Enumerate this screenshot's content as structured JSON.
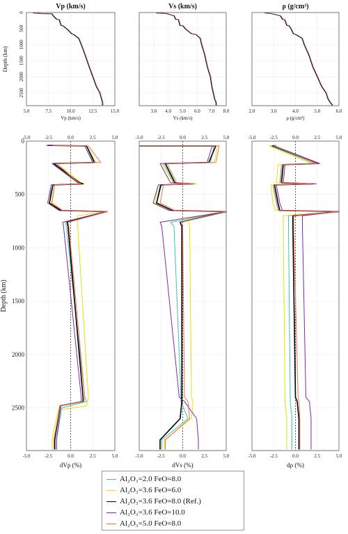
{
  "chart_data": [
    {
      "type": "line",
      "panel": "top-left",
      "title": "Vp (km/s)",
      "xlabel": "Vp (km/s)",
      "ylabel": "Depth (km)",
      "xlim": [
        5.0,
        15.0
      ],
      "ylim": [
        2900,
        0
      ],
      "xticks": [
        "5.0",
        "7.5",
        "10.0",
        "12.5",
        "15.0"
      ],
      "yticks": [
        "0",
        "500",
        "1000",
        "1500",
        "2000",
        "2500"
      ],
      "series": [
        {
          "x": [
            5.8,
            5.8,
            6.8,
            7.9,
            8.0,
            8.4,
            8.7,
            8.9,
            9.1,
            9.6,
            10.1,
            10.3,
            10.9,
            11.2,
            11.6,
            12.1,
            12.5,
            12.9,
            13.3,
            13.5,
            13.6,
            13.6
          ],
          "y": [
            0,
            15,
            35,
            40,
            100,
            210,
            220,
            400,
            410,
            520,
            660,
            680,
            800,
            1000,
            1300,
            1700,
            2000,
            2300,
            2500,
            2700,
            2800,
            2890
          ]
        }
      ],
      "grid": true
    },
    {
      "type": "line",
      "panel": "top-middle",
      "title": "Vs (km/s)",
      "xlabel": "Vs (km/s)",
      "xlim": [
        2.0,
        8.0
      ],
      "ylim": [
        2900,
        0
      ],
      "xticks": [
        "3.0",
        "4.0",
        "5.0",
        "6.0",
        "7.0",
        "8.0"
      ],
      "yticks": [
        "0",
        "500",
        "1000",
        "1500",
        "2000",
        "2500"
      ],
      "series": [
        {
          "x": [
            3.2,
            3.2,
            3.9,
            4.4,
            4.5,
            4.7,
            4.8,
            5.0,
            5.2,
            5.6,
            5.9,
            6.2,
            6.3,
            6.5,
            6.7,
            6.9,
            7.0,
            7.1,
            7.2,
            7.3,
            7.3
          ],
          "y": [
            0,
            15,
            35,
            100,
            210,
            220,
            400,
            410,
            520,
            660,
            680,
            800,
            1000,
            1300,
            1700,
            2000,
            2300,
            2500,
            2700,
            2800,
            2890
          ]
        }
      ],
      "grid": true
    },
    {
      "type": "line",
      "panel": "top-right",
      "title": "ρ (g/cm³)",
      "xlabel": "ρ (g/cm³)",
      "xlim": [
        2.0,
        6.0
      ],
      "ylim": [
        2900,
        0
      ],
      "xticks": [
        "2.0",
        "3.0",
        "4.0",
        "5.0",
        "6.0"
      ],
      "yticks": [
        "0",
        "500",
        "1000",
        "1500",
        "2000",
        "2500"
      ],
      "series": [
        {
          "x": [
            2.6,
            2.6,
            2.9,
            3.3,
            3.4,
            3.5,
            3.6,
            3.7,
            3.8,
            3.9,
            4.0,
            4.3,
            4.4,
            4.6,
            4.8,
            5.0,
            5.2,
            5.4,
            5.5,
            5.6,
            5.7
          ],
          "y": [
            0,
            15,
            35,
            100,
            210,
            220,
            400,
            410,
            520,
            660,
            680,
            800,
            1000,
            1300,
            1700,
            2000,
            2300,
            2500,
            2700,
            2800,
            2890
          ]
        }
      ],
      "grid": true
    },
    {
      "type": "line",
      "panel": "bottom-left",
      "xlabel": "dVp (%)",
      "ylabel": "Depth (km)",
      "xlim": [
        -5.0,
        5.0
      ],
      "ylim": [
        2900,
        0
      ],
      "xticks": [
        "-5.0",
        "-2.5",
        "0.0",
        "2.5",
        "5.0"
      ],
      "yticks": [
        "0",
        "500",
        "1000",
        "1500",
        "2000",
        "2500"
      ],
      "zero_line": 0,
      "series": [
        {
          "name": "Al2O3=2.0 FeO=8.0",
          "color": "#40c0b0",
          "x": [
            -2.8,
            1.6,
            2.6,
            -2.1,
            0.8,
            1.2,
            -2.2,
            -2.4,
            -1.2,
            3.8,
            -0.6,
            -0.5,
            1.6,
            1.8,
            -1.0,
            -1.6,
            -1.6
          ],
          "y": [
            40,
            45,
            200,
            210,
            390,
            400,
            410,
            580,
            650,
            660,
            760,
            800,
            2400,
            2440,
            2500,
            2800,
            2890
          ]
        },
        {
          "name": "Al2O3=3.6 FeO=6.0",
          "color": "#e8e000",
          "x": [
            -2.4,
            1.8,
            2.9,
            -1.6,
            1.2,
            1.6,
            -1.8,
            -2.2,
            -1.0,
            3.9,
            0.8,
            0.8,
            2.0,
            1.8,
            -1.4,
            -2.1,
            -2.1
          ],
          "y": [
            40,
            45,
            200,
            210,
            390,
            400,
            410,
            580,
            650,
            660,
            700,
            800,
            2400,
            2480,
            2520,
            2800,
            2890
          ]
        },
        {
          "name": "Al2O3=3.6 FeO=8.0 (Ref.)",
          "color": "#000000",
          "x": [
            -2.6,
            1.8,
            2.7,
            -1.9,
            1.0,
            1.4,
            -2.0,
            -2.4,
            -1.1,
            4.1,
            -0.4,
            -0.3,
            1.4,
            1.4,
            -1.2,
            -1.8,
            -1.8
          ],
          "y": [
            40,
            45,
            200,
            210,
            390,
            400,
            410,
            580,
            650,
            660,
            760,
            800,
            2400,
            2440,
            2480,
            2800,
            2890
          ]
        },
        {
          "name": "Al2O3=3.6 FeO=10.0",
          "color": "#7a2ca0",
          "x": [
            -2.7,
            1.6,
            2.5,
            -2.1,
            0.8,
            1.3,
            -2.2,
            -2.6,
            -1.3,
            4.0,
            -0.9,
            -0.8,
            1.2,
            1.2,
            -1.1,
            -1.6,
            -1.6
          ],
          "y": [
            40,
            45,
            200,
            210,
            390,
            400,
            410,
            580,
            650,
            660,
            760,
            800,
            2400,
            2440,
            2480,
            2800,
            2890
          ]
        },
        {
          "name": "Al2O3=5.0 FeO=8.0",
          "color": "#f07050",
          "x": [
            -2.0,
            2.0,
            3.4,
            -1.6,
            0.9,
            1.1,
            -1.8,
            -2.1,
            -0.9,
            4.2,
            -0.3,
            -0.2,
            1.6,
            1.5,
            -1.2,
            -1.9,
            -1.9
          ],
          "y": [
            40,
            45,
            200,
            210,
            390,
            400,
            410,
            580,
            650,
            660,
            760,
            800,
            2400,
            2440,
            2480,
            2800,
            2890
          ]
        }
      ],
      "grid": true
    },
    {
      "type": "line",
      "panel": "bottom-middle",
      "xlabel": "dVs (%)",
      "xlim": [
        -5.0,
        5.0
      ],
      "ylim": [
        2900,
        0
      ],
      "xticks": [
        "-5.0",
        "-2.5",
        "0.0",
        "2.5",
        "5.0"
      ],
      "zero_line": 0,
      "series": [
        {
          "name": "Al2O3=2.0 FeO=8.0",
          "color": "#40c0b0",
          "x": [
            -5.0,
            3.6,
            3.2,
            -2.2,
            -1.0,
            1.0,
            -2.6,
            -3.0,
            -1.4,
            6.0,
            -1.4,
            -1.0,
            -0.2,
            -0.2,
            0.6,
            -2.4,
            -2.4
          ],
          "y": [
            45,
            45,
            200,
            210,
            390,
            400,
            410,
            580,
            650,
            660,
            760,
            800,
            2400,
            2440,
            2600,
            2800,
            2890
          ]
        },
        {
          "name": "Al2O3=3.6 FeO=6.0",
          "color": "#e8e000",
          "x": [
            -5.0,
            4.0,
            3.6,
            -2.4,
            -1.1,
            1.6,
            -2.8,
            -3.2,
            -1.3,
            6.0,
            0.6,
            0.8,
            1.0,
            1.2,
            1.0,
            -2.1,
            -2.1
          ],
          "y": [
            45,
            45,
            200,
            210,
            390,
            400,
            410,
            580,
            650,
            660,
            720,
            800,
            2400,
            2440,
            2600,
            2800,
            2890
          ]
        },
        {
          "name": "Al2O3=3.6 FeO=8.0 (Ref.)",
          "color": "#000000",
          "x": [
            -5.0,
            3.8,
            3.0,
            -2.0,
            -0.9,
            1.2,
            -2.5,
            -3.0,
            -1.2,
            6.0,
            -0.3,
            -0.1,
            -0.1,
            -0.1,
            -0.3,
            -2.6,
            -2.6
          ],
          "y": [
            45,
            45,
            200,
            210,
            390,
            400,
            410,
            580,
            650,
            660,
            760,
            800,
            2400,
            2440,
            2600,
            2800,
            2890
          ]
        },
        {
          "name": "Al2O3=3.6 FeO=10.0",
          "color": "#7a2ca0",
          "x": [
            -5.0,
            3.4,
            2.8,
            -2.6,
            -1.4,
            0.8,
            -2.8,
            -3.4,
            -1.6,
            6.0,
            -2.6,
            -2.4,
            -0.4,
            0.2,
            1.6,
            1.8,
            1.8
          ],
          "y": [
            45,
            45,
            200,
            210,
            390,
            400,
            410,
            580,
            650,
            660,
            760,
            800,
            2400,
            2440,
            2600,
            2800,
            2890
          ]
        },
        {
          "name": "Al2O3=5.0 FeO=8.0",
          "color": "#f07050",
          "x": [
            -5.0,
            4.2,
            3.8,
            -1.8,
            -0.7,
            1.4,
            -2.2,
            -2.6,
            -0.9,
            6.0,
            -0.2,
            0.0,
            0.2,
            0.6,
            0.8,
            -2.0,
            -2.0
          ],
          "y": [
            45,
            45,
            200,
            210,
            390,
            400,
            410,
            580,
            650,
            660,
            760,
            800,
            2400,
            2440,
            2600,
            2800,
            2890
          ]
        }
      ],
      "grid": true
    },
    {
      "type": "line",
      "panel": "bottom-right",
      "xlabel": "dρ (%)",
      "xlim": [
        -5.0,
        5.0
      ],
      "ylim": [
        2900,
        0
      ],
      "xticks": [
        "-5.0",
        "-2.5",
        "0.0",
        "2.5",
        "5.0"
      ],
      "zero_line": 0,
      "series": [
        {
          "name": "Al2O3=2.0 FeO=8.0",
          "color": "#40c0b0",
          "x": [
            -2.6,
            -2.8,
            2.2,
            -1.6,
            -1.8,
            1.6,
            -2.6,
            -2.2,
            -2.0,
            5.0,
            -0.8,
            -0.8,
            -0.6,
            -0.6,
            -0.4,
            -0.4
          ],
          "y": [
            40,
            45,
            210,
            220,
            390,
            400,
            410,
            580,
            650,
            660,
            700,
            800,
            2400,
            2440,
            2600,
            2890
          ]
        },
        {
          "name": "Al2O3=3.6 FeO=6.0",
          "color": "#e8e000",
          "x": [
            -2.8,
            -3.0,
            1.8,
            -2.0,
            -2.2,
            1.2,
            -2.8,
            -2.6,
            -2.3,
            5.0,
            -1.4,
            -1.4,
            -1.2,
            -1.2,
            -1.0,
            -1.0
          ],
          "y": [
            40,
            45,
            210,
            220,
            390,
            400,
            410,
            580,
            650,
            660,
            700,
            800,
            2400,
            2440,
            2600,
            2890
          ]
        },
        {
          "name": "Al2O3=3.6 FeO=8.0 (Ref.)",
          "color": "#000000",
          "x": [
            -2.4,
            -2.6,
            2.6,
            -1.4,
            -1.6,
            2.0,
            -2.4,
            -2.0,
            -1.8,
            5.0,
            -0.3,
            -0.3,
            0.0,
            0.2,
            0.4,
            0.4
          ],
          "y": [
            40,
            45,
            210,
            220,
            390,
            400,
            410,
            580,
            650,
            660,
            700,
            800,
            2400,
            2440,
            2600,
            2890
          ]
        },
        {
          "name": "Al2O3=3.6 FeO=10.0",
          "color": "#7a2ca0",
          "x": [
            -2.2,
            -2.4,
            2.8,
            -1.2,
            -1.4,
            2.4,
            -2.2,
            -1.8,
            -1.5,
            5.0,
            0.8,
            0.8,
            1.2,
            1.6,
            1.8,
            1.8
          ],
          "y": [
            40,
            45,
            210,
            220,
            390,
            400,
            410,
            580,
            650,
            660,
            700,
            800,
            2400,
            2440,
            2600,
            2890
          ]
        },
        {
          "name": "Al2O3=5.0 FeO=8.0",
          "color": "#f07050",
          "x": [
            -2.3,
            -2.5,
            2.5,
            -1.5,
            -1.7,
            1.8,
            -2.5,
            -2.1,
            -1.9,
            5.0,
            -0.2,
            -0.2,
            0.3,
            0.4,
            0.5,
            0.5
          ],
          "y": [
            40,
            45,
            210,
            220,
            390,
            400,
            410,
            580,
            650,
            660,
            700,
            800,
            2400,
            2440,
            2600,
            2890
          ]
        }
      ],
      "grid": true
    }
  ],
  "legend": {
    "placement": "bottom-center",
    "entries": [
      {
        "label": "Al₂O₃=2.0 FeO=8.0",
        "color": "#40c0b0"
      },
      {
        "label": "Al₂O₃=3.6 FeO=6.0",
        "color": "#e8e000"
      },
      {
        "label": "Al₂O₃=3.6 FeO=8.0 (Ref.)",
        "color": "#000000"
      },
      {
        "label": "Al₂O₃=3.6 FeO=10.0",
        "color": "#7a2ca0"
      },
      {
        "label": "Al₂O₃=5.0 FeO=8.0",
        "color": "#f07050"
      }
    ]
  }
}
